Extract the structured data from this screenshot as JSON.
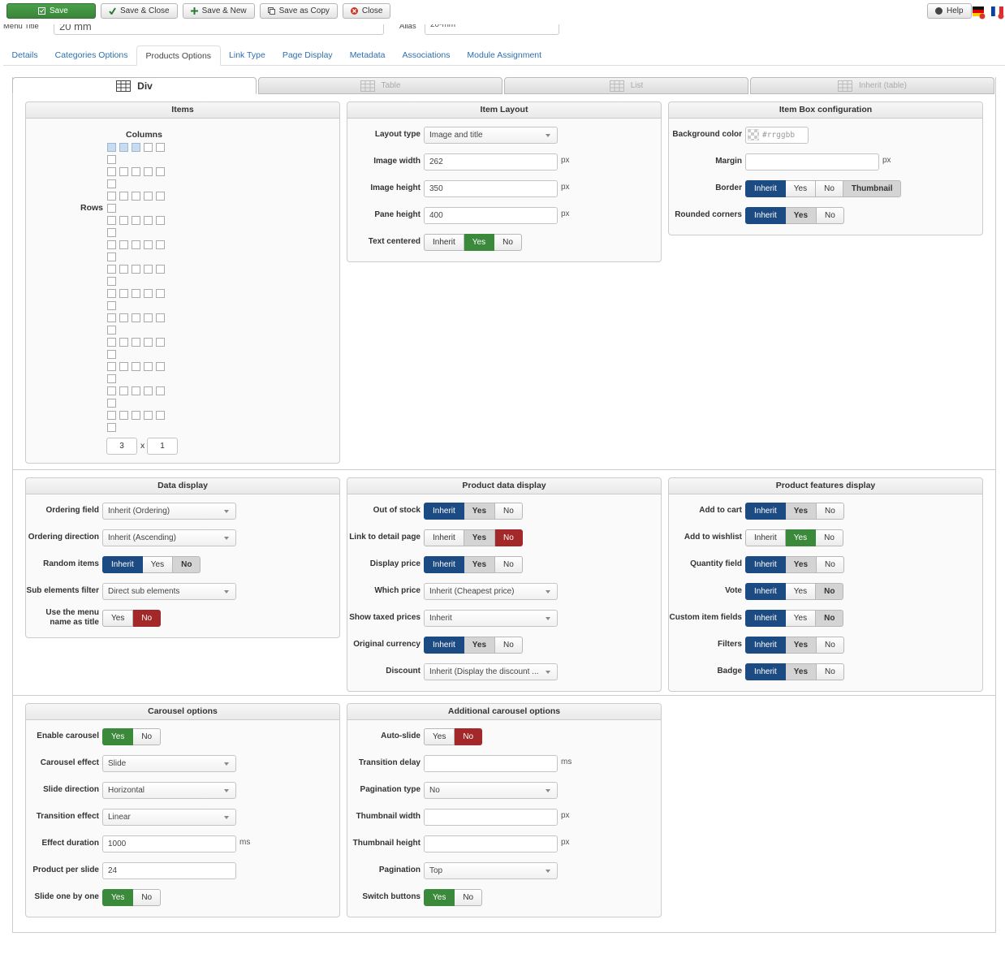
{
  "toolbar": {
    "buttons": [
      "Save",
      "Save & Close",
      "Save & New",
      "Save as Copy",
      "Close"
    ],
    "help": "Help"
  },
  "header": {
    "menu_title_label": "Menu Title",
    "menu_title": "20 mm",
    "alias_label": "Alias",
    "alias": "20-mm"
  },
  "tabs": {
    "items": [
      "Details",
      "Categories Options",
      "Products Options",
      "Link Type",
      "Page Display",
      "Metadata",
      "Associations",
      "Module Assignment"
    ],
    "active": 2
  },
  "layout_tabs": {
    "items": [
      "Div",
      "Table",
      "List",
      "Inherit (table)"
    ],
    "active": 0
  },
  "sections": [
    {
      "panels": [
        {
          "title": "Items",
          "columns_label": "Columns",
          "rows_label": "Rows",
          "columns": 3,
          "rows": 1,
          "times": "x"
        },
        {
          "title": "Item Layout",
          "fields": [
            {
              "label": "Layout type",
              "control": "select",
              "value": "Image and title"
            },
            {
              "label": "Image width",
              "control": "input",
              "value": "262",
              "unit": "px"
            },
            {
              "label": "Image height",
              "control": "input",
              "value": "350",
              "unit": "px"
            },
            {
              "label": "Pane height",
              "control": "input",
              "value": "400",
              "unit": "px"
            },
            {
              "label": "Text centered",
              "control": "toggle",
              "options": [
                "Inherit",
                "Yes",
                "No"
              ],
              "selected": 1,
              "color": "#3b8a3b"
            }
          ]
        },
        {
          "title": "Item Box configuration",
          "fields": [
            {
              "label": "Background color",
              "control": "color",
              "value": "#rrggbb"
            },
            {
              "label": "Margin",
              "control": "input",
              "unit": "px"
            },
            {
              "label": "Border",
              "control": "toggle",
              "options": [
                "Inherit",
                "Yes",
                "No",
                "Thumbnail"
              ],
              "selected": 0,
              "inherited": 3,
              "color": "#1c4a82"
            },
            {
              "label": "Rounded corners",
              "control": "toggle",
              "options": [
                "Inherit",
                "Yes",
                "No"
              ],
              "selected": 0,
              "inherited": 1,
              "color": "#1c4a82"
            }
          ]
        }
      ]
    },
    {
      "panels": [
        {
          "title": "Data display",
          "fields": [
            {
              "label": "Ordering field",
              "control": "select",
              "value": "Inherit (Ordering)"
            },
            {
              "label": "Ordering direction",
              "control": "select",
              "value": "Inherit (Ascending)"
            },
            {
              "label": "Random items",
              "control": "toggle",
              "options": [
                "Inherit",
                "Yes",
                "No"
              ],
              "selected": 0,
              "inherited": 2,
              "color": "#1c4a82"
            },
            {
              "label": "Sub elements filter",
              "control": "select",
              "value": "Direct sub elements"
            },
            {
              "label": "Use the menu name as title",
              "control": "toggle",
              "options": [
                "Yes",
                "No"
              ],
              "selected": 1,
              "color": "#a3282a"
            }
          ]
        },
        {
          "title": "Product data display",
          "fields": [
            {
              "label": "Out of stock",
              "control": "toggle",
              "options": [
                "Inherit",
                "Yes",
                "No"
              ],
              "selected": 0,
              "inherited": 1,
              "color": "#1c4a82"
            },
            {
              "label": "Link to detail page",
              "control": "toggle",
              "options": [
                "Inherit",
                "Yes",
                "No"
              ],
              "selected": 2,
              "inherited": 1,
              "color": "#a3282a"
            },
            {
              "label": "Display price",
              "control": "toggle",
              "options": [
                "Inherit",
                "Yes",
                "No"
              ],
              "selected": 0,
              "inherited": 1,
              "color": "#1c4a82"
            },
            {
              "label": "Which price",
              "control": "select",
              "value": "Inherit (Cheapest price)"
            },
            {
              "label": "Show taxed prices",
              "control": "select",
              "value": "Inherit"
            },
            {
              "label": "Original currency",
              "control": "toggle",
              "options": [
                "Inherit",
                "Yes",
                "No"
              ],
              "selected": 0,
              "inherited": 1,
              "color": "#1c4a82"
            },
            {
              "label": "Discount",
              "control": "select",
              "value": "Inherit (Display the discount ..."
            }
          ]
        },
        {
          "title": "Product features display",
          "fields": [
            {
              "label": "Add to cart",
              "control": "toggle",
              "options": [
                "Inherit",
                "Yes",
                "No"
              ],
              "selected": 0,
              "inherited": 1,
              "color": "#1c4a82"
            },
            {
              "label": "Add to wishlist",
              "control": "toggle",
              "options": [
                "Inherit",
                "Yes",
                "No"
              ],
              "selected": 1,
              "color": "#3b8a3b"
            },
            {
              "label": "Quantity field",
              "control": "toggle",
              "options": [
                "Inherit",
                "Yes",
                "No"
              ],
              "selected": 0,
              "inherited": 1,
              "color": "#1c4a82"
            },
            {
              "label": "Vote",
              "control": "toggle",
              "options": [
                "Inherit",
                "Yes",
                "No"
              ],
              "selected": 0,
              "inherited": 2,
              "color": "#1c4a82"
            },
            {
              "label": "Custom item fields",
              "control": "toggle",
              "options": [
                "Inherit",
                "Yes",
                "No"
              ],
              "selected": 0,
              "inherited": 2,
              "color": "#1c4a82"
            },
            {
              "label": "Filters",
              "control": "toggle",
              "options": [
                "Inherit",
                "Yes",
                "No"
              ],
              "selected": 0,
              "inherited": 1,
              "color": "#1c4a82"
            },
            {
              "label": "Badge",
              "control": "toggle",
              "options": [
                "Inherit",
                "Yes",
                "No"
              ],
              "selected": 0,
              "inherited": 1,
              "color": "#1c4a82"
            }
          ]
        }
      ]
    },
    {
      "panels": [
        {
          "title": "Carousel options",
          "fields": [
            {
              "label": "Enable carousel",
              "control": "toggle",
              "options": [
                "Yes",
                "No"
              ],
              "selected": 0,
              "color": "#3b8a3b"
            },
            {
              "label": "Carousel effect",
              "control": "select",
              "value": "Slide"
            },
            {
              "label": "Slide direction",
              "control": "select",
              "value": "Horizontal"
            },
            {
              "label": "Transition effect",
              "control": "select",
              "value": "Linear"
            },
            {
              "label": "Effect duration",
              "control": "input",
              "value": "1000",
              "unit": "ms"
            },
            {
              "label": "Product per slide",
              "control": "input",
              "value": "24"
            },
            {
              "label": "Slide one by one",
              "control": "toggle",
              "options": [
                "Yes",
                "No"
              ],
              "selected": 0,
              "color": "#3b8a3b"
            }
          ]
        },
        {
          "title": "Additional carousel options",
          "fields": [
            {
              "label": "Auto-slide",
              "control": "toggle",
              "options": [
                "Yes",
                "No"
              ],
              "selected": 1,
              "color": "#a3282a"
            },
            {
              "label": "Transition delay",
              "control": "input",
              "unit": "ms"
            },
            {
              "label": "Pagination type",
              "control": "select",
              "value": "No"
            },
            {
              "label": "Thumbnail width",
              "control": "input",
              "unit": "px"
            },
            {
              "label": "Thumbnail height",
              "control": "input",
              "unit": "px"
            },
            {
              "label": "Pagination",
              "control": "select",
              "value": "Top"
            },
            {
              "label": "Switch buttons",
              "control": "toggle",
              "options": [
                "Yes",
                "No"
              ],
              "selected": 0,
              "color": "#3b8a3b"
            }
          ]
        }
      ]
    }
  ]
}
